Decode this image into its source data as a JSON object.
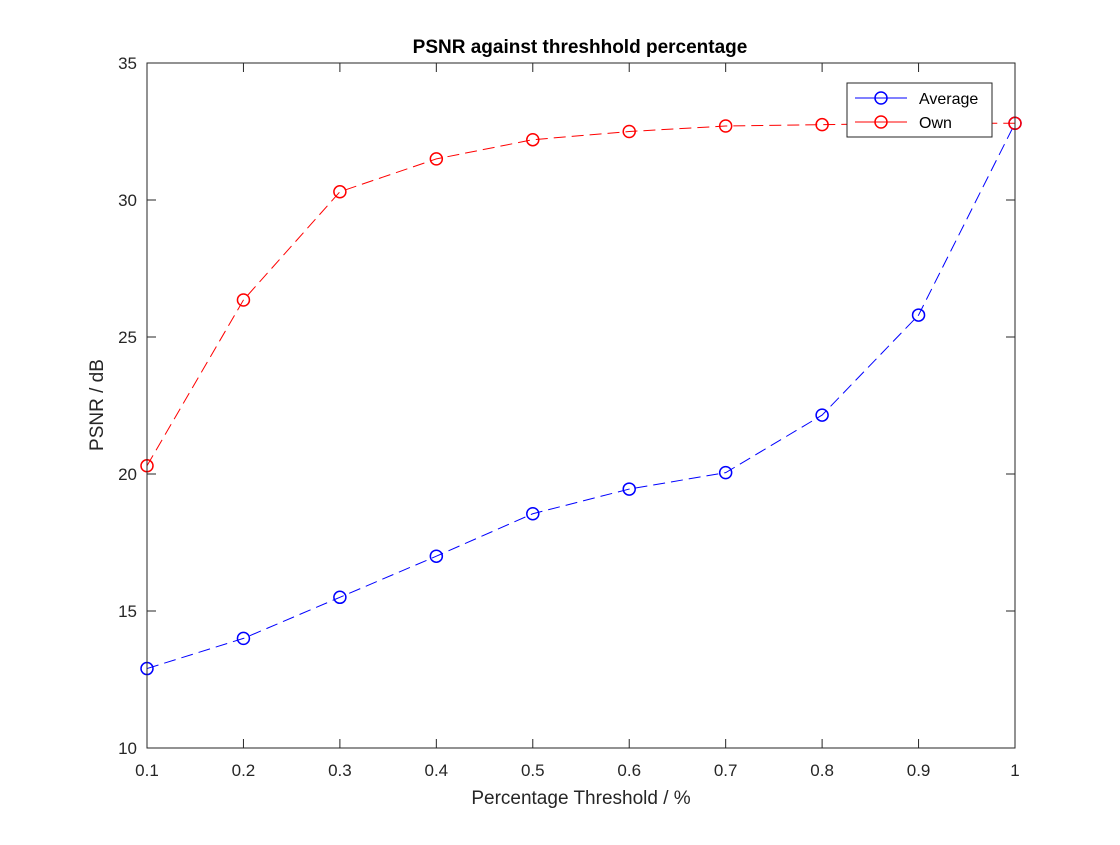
{
  "chart_data": {
    "type": "line",
    "title": "PSNR against threshhold percentage",
    "xlabel": "Percentage Threshold / %",
    "ylabel": "PSNR / dB",
    "xlim": [
      0.1,
      1
    ],
    "ylim": [
      10,
      35
    ],
    "xticks": [
      "0.1",
      "0.2",
      "0.3",
      "0.4",
      "0.5",
      "0.6",
      "0.7",
      "0.8",
      "0.9",
      "1"
    ],
    "yticks": [
      "10",
      "15",
      "20",
      "25",
      "30",
      "35"
    ],
    "x": [
      0.1,
      0.2,
      0.3,
      0.4,
      0.5,
      0.6,
      0.7,
      0.8,
      0.9,
      1.0
    ],
    "series": [
      {
        "name": "Average",
        "color": "#0000ff",
        "line_style": "dashed",
        "marker": "circle",
        "values": [
          12.9,
          14.0,
          15.5,
          17.0,
          18.55,
          19.45,
          20.05,
          22.15,
          25.8,
          32.8
        ]
      },
      {
        "name": "Own",
        "color": "#ff0000",
        "line_style": "dashed",
        "marker": "circle",
        "values": [
          20.3,
          26.35,
          30.3,
          31.5,
          32.2,
          32.5,
          32.7,
          32.75,
          32.8,
          32.8
        ]
      }
    ],
    "grid": false,
    "legend_position": "top-right"
  }
}
